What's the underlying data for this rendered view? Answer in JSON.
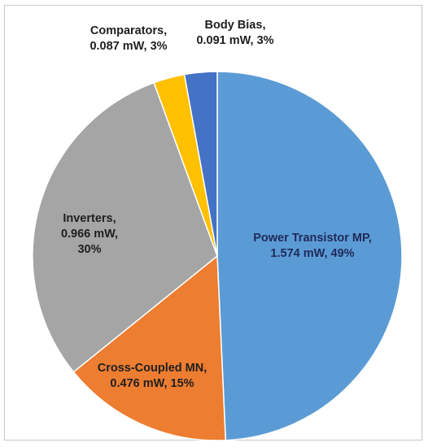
{
  "chart_data": {
    "type": "pie",
    "slices": [
      {
        "name": "Power Transistor MP",
        "value_mw": 1.574,
        "value_text": "1.574  mW",
        "percent_text": "49%",
        "color": "#5b9bd5",
        "label_lines": [
          "Power Transistor MP,",
          "1.574  mW, 49%"
        ]
      },
      {
        "name": "Cross-Coupled MN",
        "value_mw": 0.476,
        "value_text": "0.476 mW",
        "percent_text": "15%",
        "color": "#ed7d31",
        "label_lines": [
          "Cross-Coupled MN,",
          "0.476 mW, 15%"
        ]
      },
      {
        "name": "Inverters",
        "value_mw": 0.966,
        "value_text": "0.966 mW",
        "percent_text": "30%",
        "color": "#a5a5a5",
        "label_lines": [
          "Inverters,",
          "0.966 mW,",
          "30%"
        ]
      },
      {
        "name": "Comparators",
        "value_mw": 0.087,
        "value_text": "0.087 mW",
        "percent_text": "3%",
        "color": "#ffc000",
        "label_lines": [
          "Comparators,",
          "0.087 mW, 3%"
        ]
      },
      {
        "name": "Body Bias",
        "value_mw": 0.091,
        "value_text": "0.091 mW",
        "percent_text": "3%",
        "color": "#4472c4",
        "label_lines": [
          "Body Bias,",
          "0.091 mW, 3%"
        ]
      }
    ],
    "start_angle": "12 o'clock",
    "direction": "clockwise",
    "legend": "none"
  }
}
